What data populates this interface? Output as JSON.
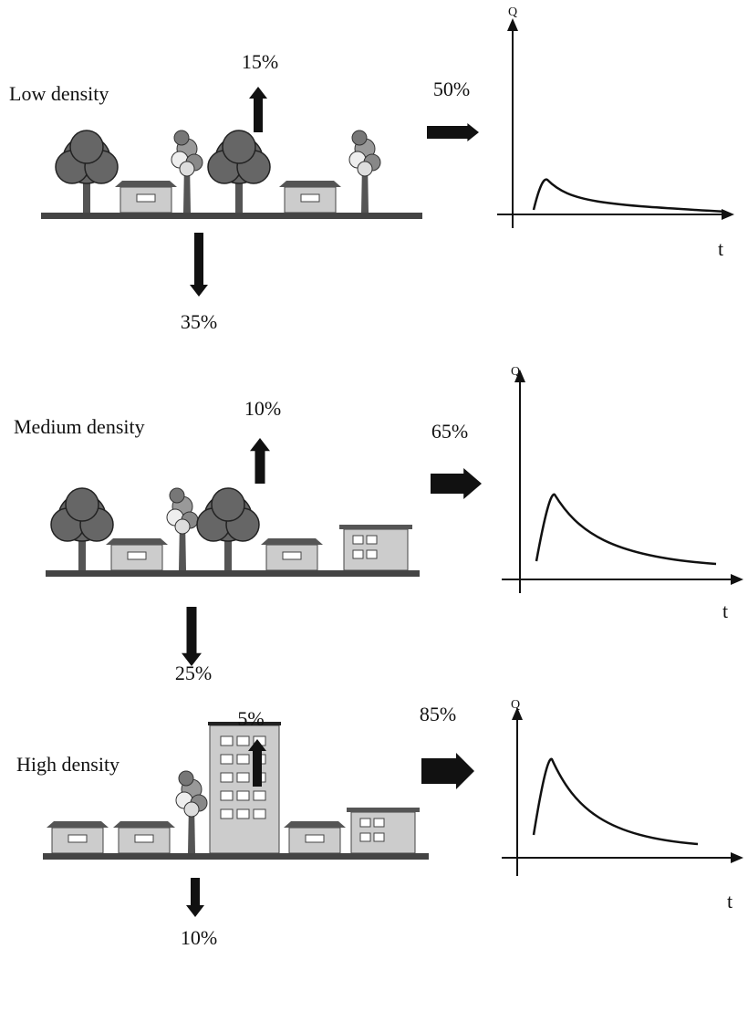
{
  "panels": [
    {
      "label": "Low density",
      "up": "15%",
      "down": "35%",
      "right": "50%",
      "y_axis": "Q",
      "x_axis": "t"
    },
    {
      "label": "Medium density",
      "up": "10%",
      "down": "25%",
      "right": "65%",
      "y_axis": "Q",
      "x_axis": "t"
    },
    {
      "label": "High density",
      "up": "5%",
      "down": "10%",
      "right": "85%",
      "y_axis": "Q",
      "x_axis": "t"
    }
  ]
}
